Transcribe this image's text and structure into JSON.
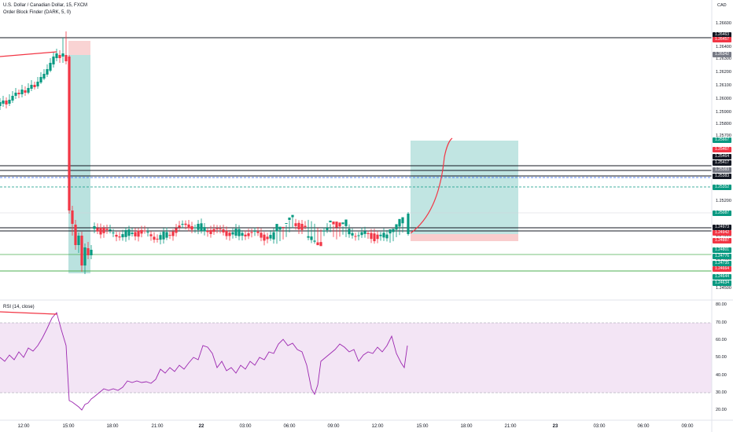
{
  "header": {
    "symbol": "U.S. Dollar / Canadian Dollar, 15, FXCM",
    "indicator": "Order Block Finder (DARK, 5, 0)",
    "rsi_label": "RSI (14, close)",
    "currency": "CAD"
  },
  "price_axis": {
    "ticks": [
      "1.26600",
      "1.26400",
      "1.26300",
      "1.26200",
      "1.26100",
      "1.26000",
      "1.25900",
      "1.25800",
      "1.25700",
      "1.25200",
      "1.25100",
      "1.24900",
      "1.24600",
      "1.24500"
    ]
  },
  "price_tags": [
    {
      "text": "1.26463",
      "bg": "#131722"
    },
    {
      "text": "1.26457",
      "bg": "#f23645"
    },
    {
      "text": "1.26342",
      "bg": "#787b86"
    },
    {
      "text": "1.25667",
      "bg": "#089981"
    },
    {
      "text": "1.25467",
      "bg": "#f23645"
    },
    {
      "text": "1.25464",
      "bg": "#131722"
    },
    {
      "text": "1.25417",
      "bg": "#131722"
    },
    {
      "text": "1.25383",
      "bg": "#787b86"
    },
    {
      "text": "1.25383",
      "bg": "#131722"
    },
    {
      "text": "1.25352",
      "bg": "#089981"
    },
    {
      "text": "1.25087",
      "bg": "#089981"
    },
    {
      "text": "1.24973",
      "bg": "#131722"
    },
    {
      "text": "1.24942",
      "bg": "#f23645"
    },
    {
      "text": "1.24887",
      "bg": "#f23645"
    },
    {
      "text": "1.24801",
      "bg": "#089981"
    },
    {
      "text": "1.24776",
      "bg": "#089981"
    },
    {
      "text": "1.24735",
      "bg": "#089981"
    },
    {
      "text": "1.24664",
      "bg": "#f23645"
    },
    {
      "text": "1.24644",
      "bg": "#089981"
    },
    {
      "text": "1.24634",
      "bg": "#089981"
    }
  ],
  "rsi_axis": {
    "ticks": [
      "80.00",
      "70.00",
      "60.00",
      "50.00",
      "40.00",
      "30.00",
      "20.00"
    ]
  },
  "time_axis": {
    "labels": [
      "12:00",
      "15:00",
      "18:00",
      "21:00",
      "22",
      "03:00",
      "06:00",
      "09:00",
      "12:00",
      "15:00",
      "18:00",
      "21:00",
      "23",
      "03:00",
      "06:00",
      "09:00"
    ]
  },
  "colors": {
    "up": "#089981",
    "down": "#f23645",
    "rsi": "#9c27b0",
    "rsi_band": "#e1bee7"
  }
}
